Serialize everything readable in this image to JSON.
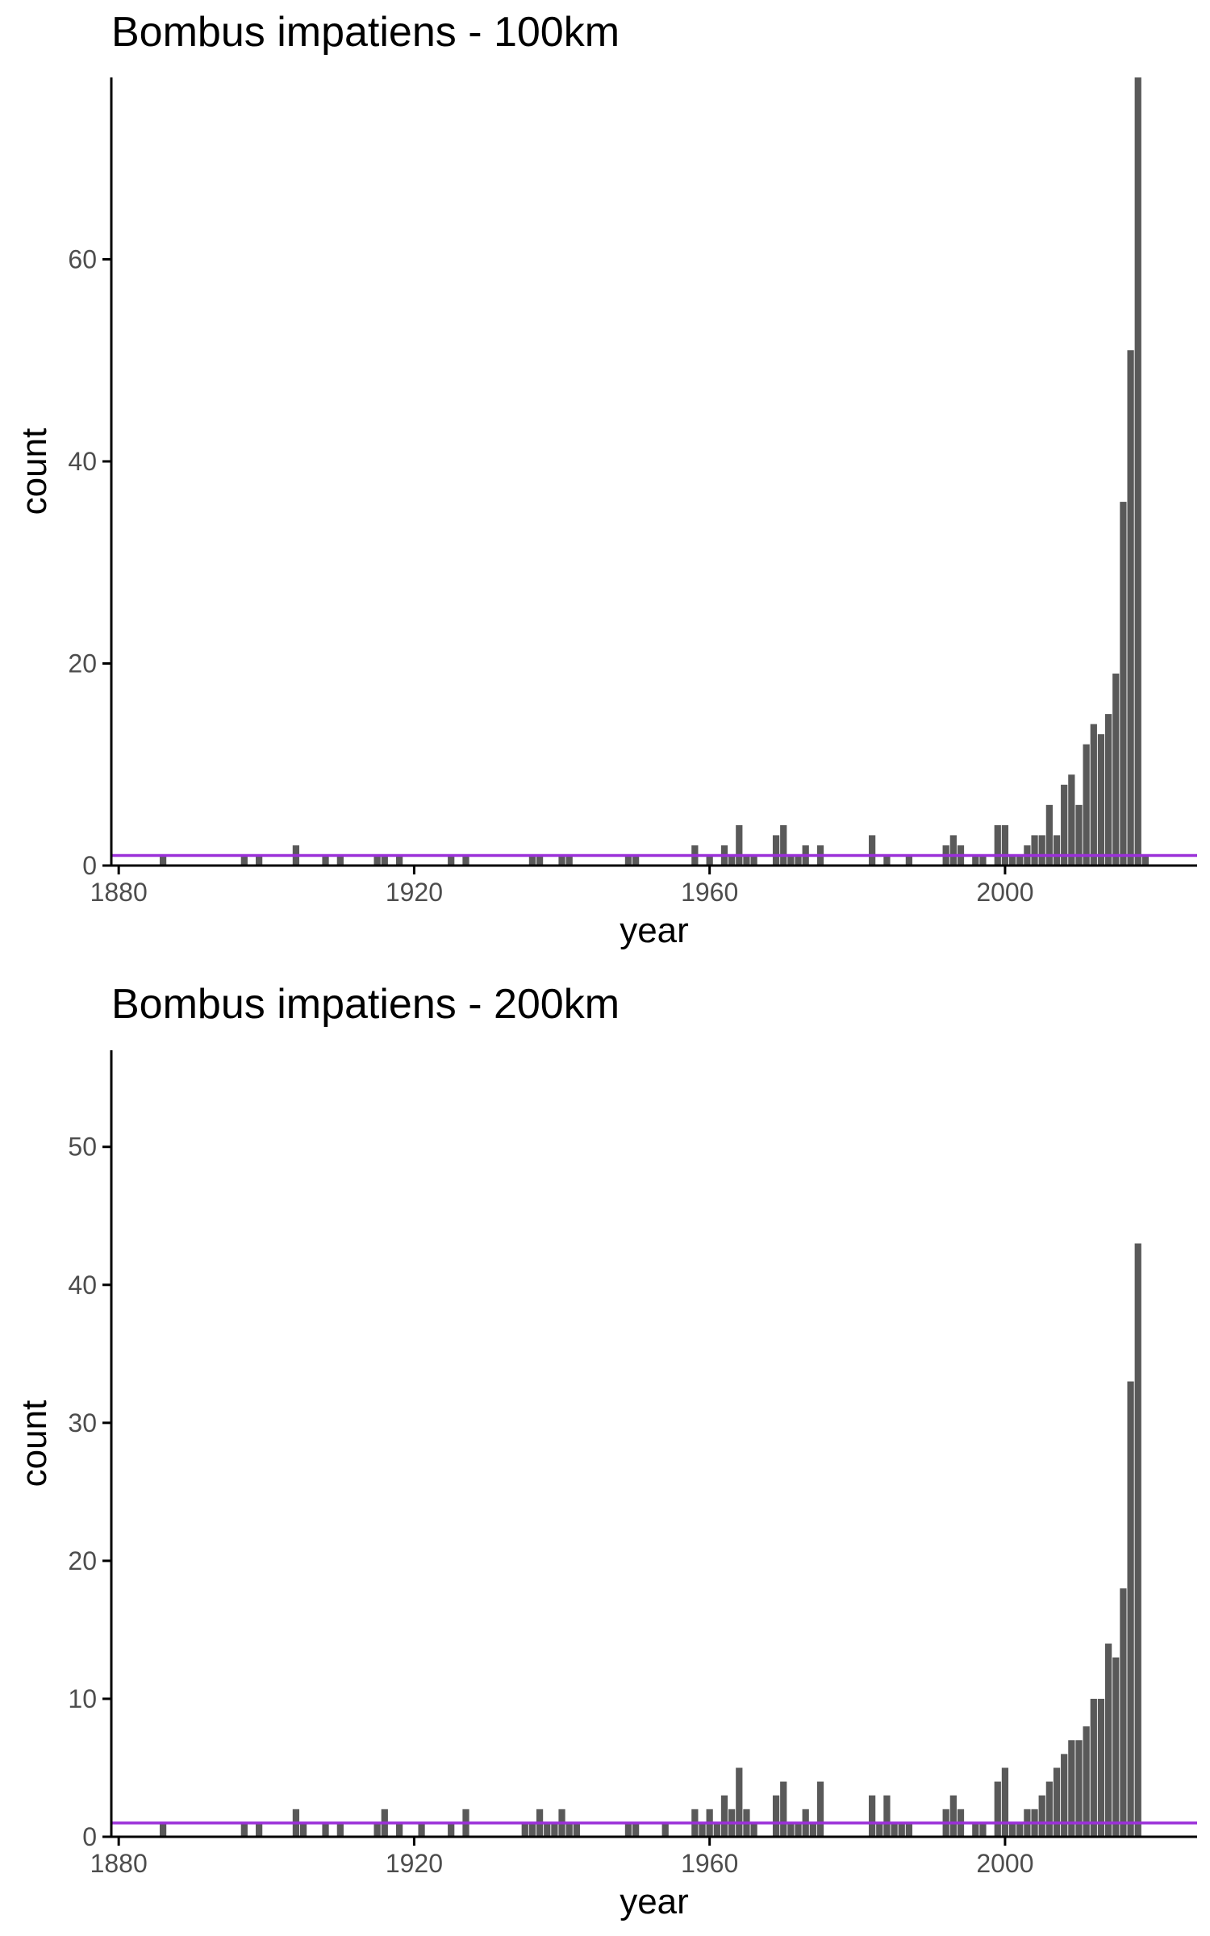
{
  "colors": {
    "bar": "#595959",
    "reference_line": "#9b30d9",
    "axis": "#000000",
    "tick_text": "#4d4d4d"
  },
  "chart_data": [
    {
      "type": "bar",
      "title": "Bombus impatiens - 100km",
      "xlabel": "year",
      "ylabel": "count",
      "xlim": [
        1879,
        2026
      ],
      "ylim": [
        0,
        78
      ],
      "x_ticks": [
        1880,
        1920,
        1960,
        2000
      ],
      "y_ticks": [
        0,
        20,
        40,
        60
      ],
      "reference_line_y": 1,
      "grid": false,
      "legend": "none",
      "x": [
        1886,
        1897,
        1899,
        1904,
        1908,
        1910,
        1915,
        1916,
        1918,
        1925,
        1927,
        1936,
        1937,
        1940,
        1941,
        1949,
        1950,
        1958,
        1960,
        1962,
        1963,
        1964,
        1965,
        1966,
        1969,
        1970,
        1971,
        1972,
        1973,
        1975,
        1982,
        1984,
        1987,
        1992,
        1993,
        1994,
        1996,
        1997,
        1999,
        2000,
        2001,
        2002,
        2003,
        2004,
        2005,
        2006,
        2007,
        2008,
        2009,
        2010,
        2011,
        2012,
        2013,
        2014,
        2015,
        2016,
        2017,
        2018,
        2019
      ],
      "values": [
        1,
        1,
        1,
        2,
        1,
        1,
        1,
        1,
        1,
        1,
        1,
        1,
        1,
        1,
        1,
        1,
        1,
        2,
        1,
        2,
        1,
        4,
        1,
        1,
        3,
        4,
        1,
        1,
        2,
        2,
        3,
        1,
        1,
        2,
        3,
        2,
        1,
        1,
        4,
        4,
        1,
        1,
        2,
        3,
        3,
        6,
        3,
        8,
        9,
        6,
        12,
        14,
        13,
        15,
        19,
        36,
        51,
        78,
        1
      ]
    },
    {
      "type": "bar",
      "title": "Bombus impatiens - 200km",
      "xlabel": "year",
      "ylabel": "count",
      "xlim": [
        1879,
        2026
      ],
      "ylim": [
        0,
        57
      ],
      "x_ticks": [
        1880,
        1920,
        1960,
        2000
      ],
      "y_ticks": [
        0,
        10,
        20,
        30,
        40,
        50
      ],
      "reference_line_y": 1,
      "grid": false,
      "legend": "none",
      "x": [
        1886,
        1897,
        1899,
        1904,
        1905,
        1908,
        1910,
        1915,
        1916,
        1918,
        1921,
        1925,
        1927,
        1935,
        1936,
        1937,
        1938,
        1939,
        1940,
        1941,
        1942,
        1949,
        1950,
        1954,
        1958,
        1959,
        1960,
        1961,
        1962,
        1963,
        1964,
        1965,
        1966,
        1969,
        1970,
        1971,
        1972,
        1973,
        1974,
        1975,
        1982,
        1983,
        1984,
        1985,
        1986,
        1987,
        1992,
        1993,
        1994,
        1996,
        1997,
        1999,
        2000,
        2001,
        2002,
        2003,
        2004,
        2005,
        2006,
        2007,
        2008,
        2009,
        2010,
        2011,
        2012,
        2013,
        2014,
        2015,
        2016,
        2017,
        2018
      ],
      "values": [
        1,
        1,
        1,
        2,
        1,
        1,
        1,
        1,
        2,
        1,
        1,
        1,
        2,
        1,
        1,
        2,
        1,
        1,
        2,
        1,
        1,
        1,
        1,
        1,
        2,
        1,
        2,
        1,
        3,
        2,
        5,
        2,
        1,
        3,
        4,
        1,
        1,
        2,
        1,
        4,
        3,
        1,
        3,
        1,
        1,
        1,
        2,
        3,
        2,
        1,
        1,
        4,
        5,
        1,
        1,
        2,
        2,
        3,
        4,
        5,
        6,
        7,
        7,
        8,
        10,
        10,
        14,
        13,
        18,
        33,
        43
      ]
    }
  ]
}
